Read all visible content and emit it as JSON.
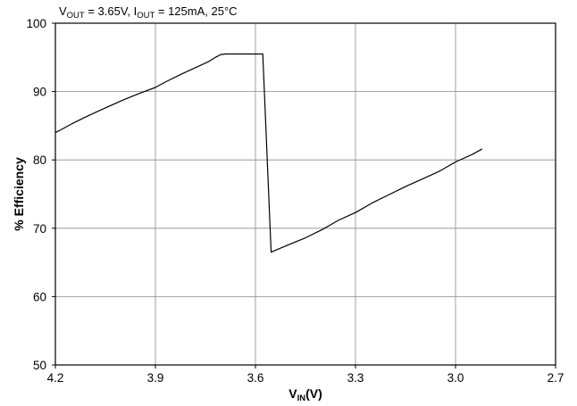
{
  "chart_data": {
    "type": "line",
    "title": "",
    "annotation": {
      "v_prefix": "V",
      "v_sub": "OUT",
      "v_value": " = 3.65V, ",
      "i_prefix": "I",
      "i_sub": "OUT",
      "i_value": " = 125mA, 25°C"
    },
    "xlabel": {
      "prefix": "V",
      "sub": "IN",
      "suffix": "(V)"
    },
    "ylabel": "% Efficiency",
    "xlim": [
      4.2,
      2.7
    ],
    "x_reversed": true,
    "ylim": [
      50,
      100
    ],
    "xticks": [
      4.2,
      3.9,
      3.6,
      3.3,
      3.0,
      2.7
    ],
    "xtick_labels": [
      "4.2",
      "3.9",
      "3.6",
      "3.3",
      "3.0",
      "2.7"
    ],
    "yticks": [
      50,
      60,
      70,
      80,
      90,
      100
    ],
    "ytick_labels": [
      "50",
      "60",
      "70",
      "80",
      "90",
      "100"
    ],
    "grid": true,
    "line_color": "#000000",
    "series": [
      {
        "x": [
          4.2,
          4.18,
          4.15,
          4.1,
          4.05,
          4.0,
          3.95,
          3.9,
          3.87,
          3.82,
          3.78,
          3.74,
          3.72,
          3.705,
          3.69,
          3.65,
          3.6,
          3.58,
          3.578,
          3.553,
          3.5,
          3.45,
          3.4,
          3.35,
          3.3,
          3.25,
          3.2,
          3.15,
          3.1,
          3.05,
          3.0,
          2.95,
          2.92
        ],
        "y": [
          84.0,
          84.5,
          85.3,
          86.5,
          87.6,
          88.7,
          89.7,
          90.6,
          91.4,
          92.6,
          93.5,
          94.4,
          95.0,
          95.4,
          95.5,
          95.5,
          95.5,
          95.5,
          95.5,
          66.5,
          67.6,
          68.6,
          69.8,
          71.2,
          72.3,
          73.7,
          74.9,
          76.1,
          77.2,
          78.3,
          79.7,
          80.8,
          81.6
        ]
      }
    ]
  }
}
